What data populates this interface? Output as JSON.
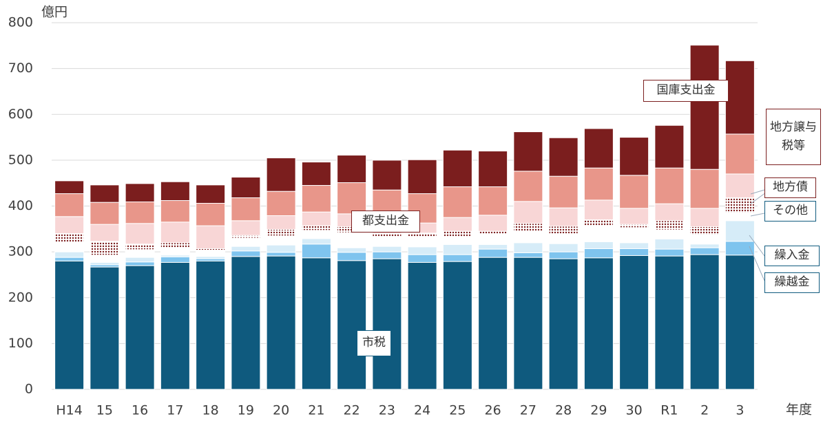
{
  "chart_data": {
    "type": "stacked_bar",
    "y_label": "億円",
    "x_label": "年度",
    "categories": [
      "H14",
      "15",
      "16",
      "17",
      "18",
      "19",
      "20",
      "21",
      "22",
      "23",
      "24",
      "25",
      "26",
      "27",
      "28",
      "29",
      "30",
      "R1",
      "2",
      "3"
    ],
    "ylim": [
      0,
      800
    ],
    "yticks": [
      0,
      100,
      200,
      300,
      400,
      500,
      600,
      700,
      800
    ],
    "grid": true,
    "series": [
      {
        "name": "市税",
        "color": "#0f5a7e",
        "values": [
          280,
          267,
          270,
          277,
          280,
          290,
          291,
          287,
          281,
          285,
          277,
          279,
          288,
          288,
          285,
          287,
          292,
          291,
          294,
          293
        ]
      },
      {
        "name": "繰越金",
        "color": "#7fc4ee",
        "values": [
          8,
          5,
          8,
          12,
          5,
          12,
          8,
          30,
          18,
          15,
          17,
          15,
          18,
          10,
          15,
          20,
          15,
          15,
          15,
          30
        ]
      },
      {
        "name": "繰入金",
        "color": "#d6ecf8",
        "values": [
          12,
          5,
          10,
          4,
          5,
          10,
          16,
          12,
          10,
          12,
          17,
          22,
          10,
          22,
          18,
          15,
          13,
          22,
          8,
          45
        ]
      },
      {
        "name": "その他",
        "color": "#ffffff",
        "values": [
          20,
          16,
          17,
          15,
          12,
          18,
          20,
          18,
          33,
          20,
          22,
          16,
          22,
          25,
          20,
          35,
          33,
          20,
          20,
          17
        ]
      },
      {
        "name": "地方債",
        "color": "#7b1e1e",
        "pattern": "dots",
        "values": [
          20,
          30,
          12,
          12,
          5,
          6,
          14,
          10,
          13,
          8,
          8,
          13,
          7,
          17,
          18,
          13,
          7,
          20,
          18,
          33
        ]
      },
      {
        "name": "地方譲与税等",
        "color": "#f8d6d6",
        "values": [
          37,
          37,
          45,
          45,
          50,
          32,
          30,
          30,
          28,
          28,
          22,
          30,
          35,
          48,
          40,
          43,
          35,
          37,
          40,
          52
        ]
      },
      {
        "name": "都支出金",
        "color": "#e8968a",
        "values": [
          50,
          48,
          47,
          47,
          49,
          50,
          53,
          58,
          68,
          67,
          64,
          67,
          62,
          66,
          69,
          70,
          72,
          78,
          85,
          87
        ]
      },
      {
        "name": "国庫支出金",
        "color": "#7b1e1e",
        "values": [
          28,
          38,
          40,
          41,
          40,
          45,
          73,
          51,
          60,
          65,
          74,
          80,
          78,
          86,
          84,
          86,
          83,
          93,
          271,
          160
        ]
      }
    ]
  }
}
